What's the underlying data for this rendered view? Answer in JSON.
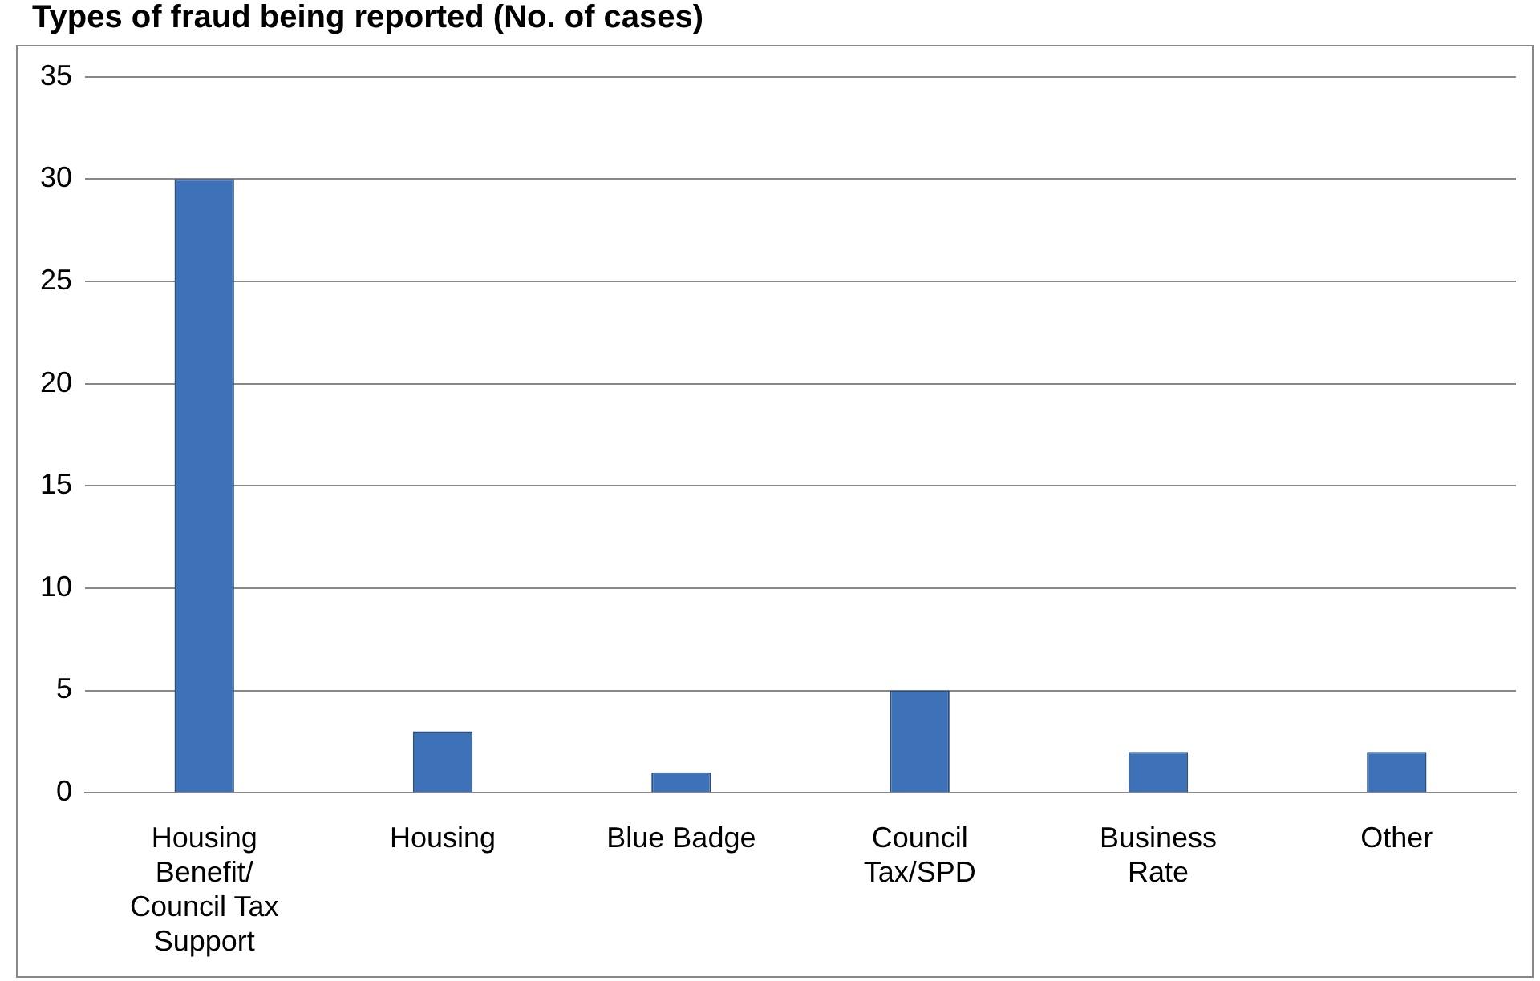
{
  "chart_data": {
    "type": "bar",
    "title": "Types of fraud being reported (No. of cases)",
    "categories": [
      "Housing Benefit/ Council Tax Support",
      "Housing",
      "Blue Badge",
      "Council Tax/SPD",
      "Business Rate",
      "Other"
    ],
    "values": [
      30,
      3,
      1,
      5,
      2,
      2
    ],
    "color": "#3d72b8",
    "ylim": [
      0,
      35
    ],
    "yticks": [
      0,
      5,
      10,
      15,
      20,
      25,
      30,
      35
    ],
    "grid": "y"
  }
}
